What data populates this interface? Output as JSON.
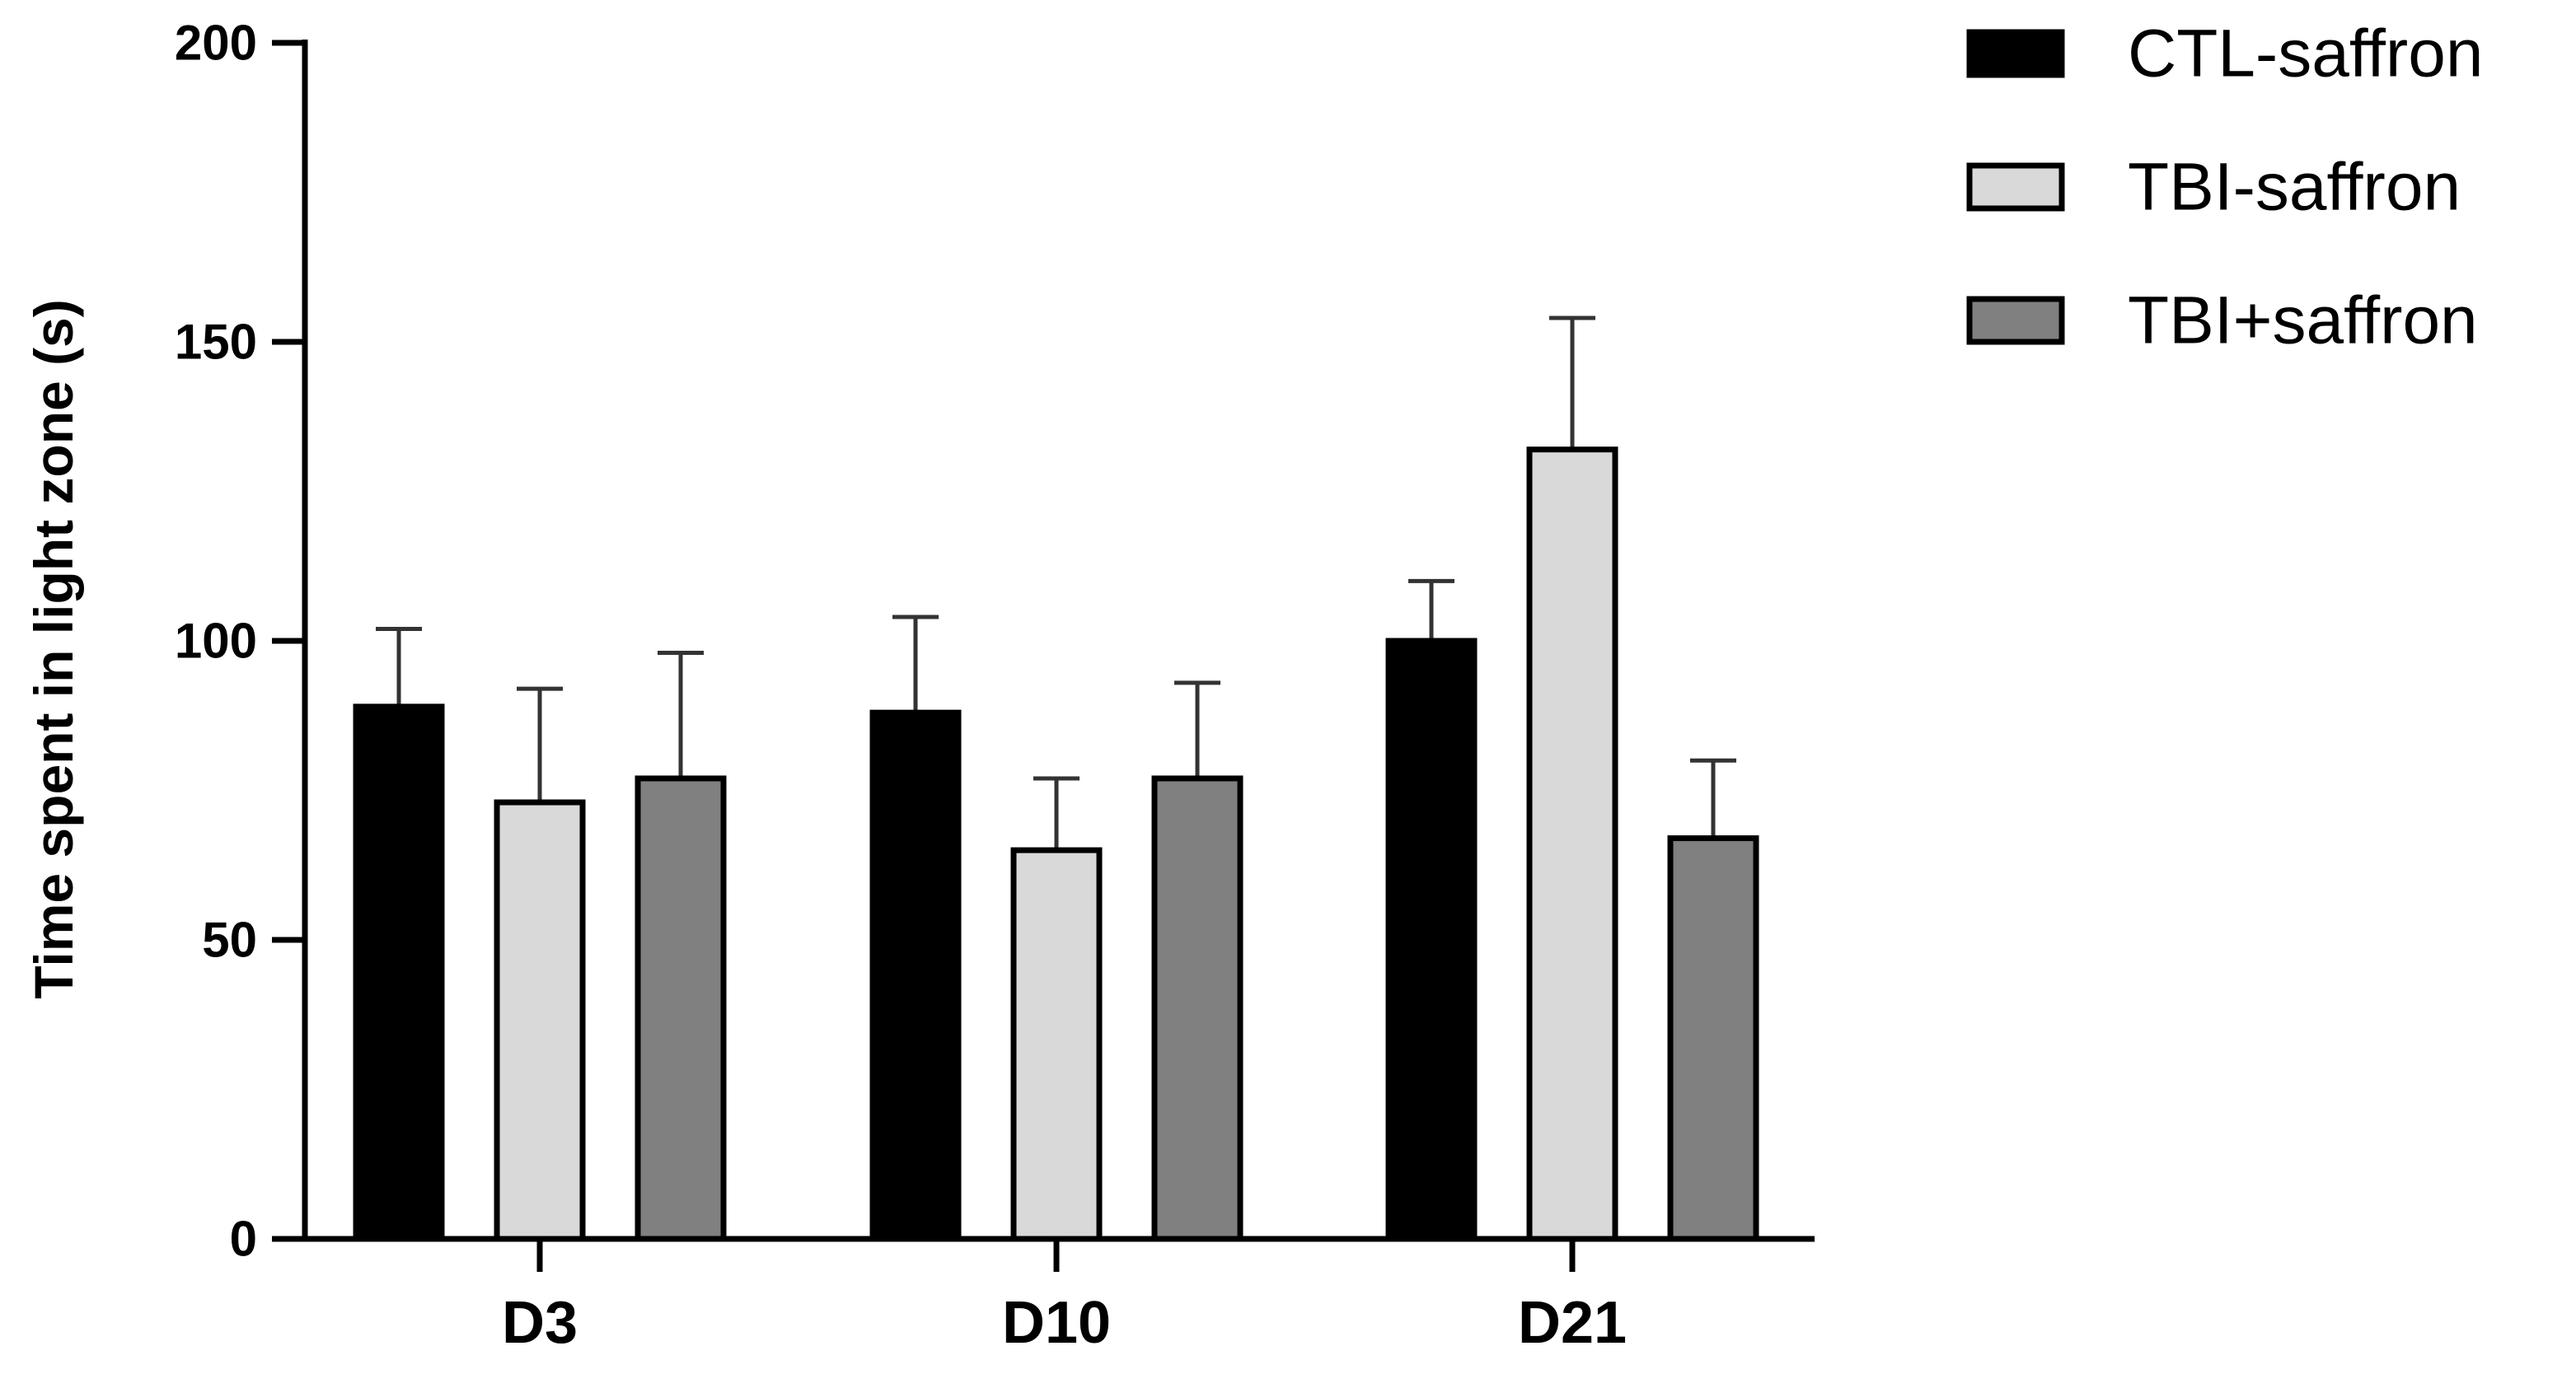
{
  "chart_data": {
    "type": "bar",
    "title": "",
    "xlabel": "",
    "ylabel": "Time spent in light zone (s)",
    "categories": [
      "D3",
      "D10",
      "D21"
    ],
    "ylim": [
      0,
      200
    ],
    "yticks": [
      0,
      50,
      100,
      150,
      200
    ],
    "series": [
      {
        "name": "CTL-saffron",
        "color": "#000000",
        "values": [
          89,
          88,
          100
        ],
        "errors": [
          13,
          16,
          10
        ]
      },
      {
        "name": "TBI-saffron",
        "color": "#d9d9d9",
        "values": [
          73,
          65,
          132
        ],
        "errors": [
          19,
          12,
          22
        ]
      },
      {
        "name": "TBI+saffron",
        "color": "#808080",
        "values": [
          77,
          77,
          67
        ],
        "errors": [
          21,
          16,
          13
        ]
      }
    ],
    "legend": {
      "position": "top-right"
    },
    "grid": false
  }
}
